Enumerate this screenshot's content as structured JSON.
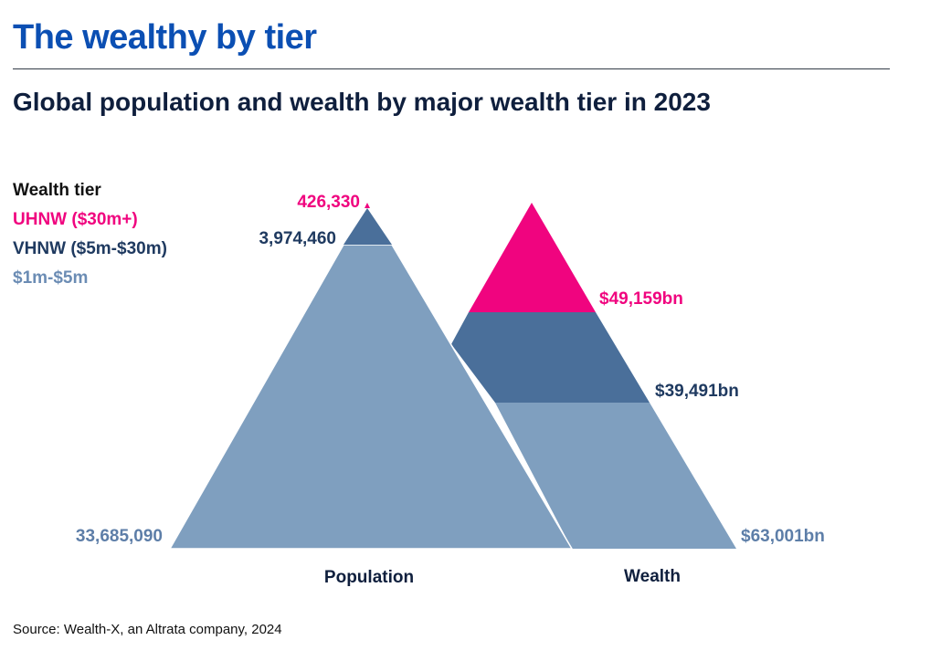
{
  "header": {
    "title": "The wealthy by tier",
    "subtitle": "Global population and wealth by major wealth tier in 2023"
  },
  "legend": {
    "title": "Wealth tier",
    "items": [
      {
        "label": "UHNW ($30m+)",
        "color": "#f0047f"
      },
      {
        "label": "VHNW ($5m-$30m)",
        "color": "#1f3a60"
      },
      {
        "label": "$1m-$5m",
        "color": "#6b8cb4"
      }
    ]
  },
  "chart_data": {
    "type": "pyramid",
    "title": "Global population and wealth by major wealth tier in 2023",
    "tiers": [
      "UHNW ($30m+)",
      "VHNW ($5m-$30m)",
      "$1m-$5m"
    ],
    "series": [
      {
        "name": "Population",
        "values": [
          426330,
          3974460,
          33685090
        ],
        "labels": [
          "426,330",
          "3,974,460",
          "33,685,090"
        ]
      },
      {
        "name": "Wealth",
        "unit": "bn USD",
        "values": [
          49159,
          39491,
          63001
        ],
        "labels": [
          "$49,159bn",
          "$39,491bn",
          "$63,001bn"
        ]
      }
    ],
    "colors": {
      "UHNW": "#f0047f",
      "VHNW": "#4a6f9a",
      "core": "#7f9fbf"
    },
    "label_colors": {
      "UHNW": "#f0047f",
      "VHNW": "#1f3a60",
      "core": "#5d7ea8"
    }
  },
  "footer": {
    "source": "Source: Wealth-X, an Altrata company, 2024"
  }
}
